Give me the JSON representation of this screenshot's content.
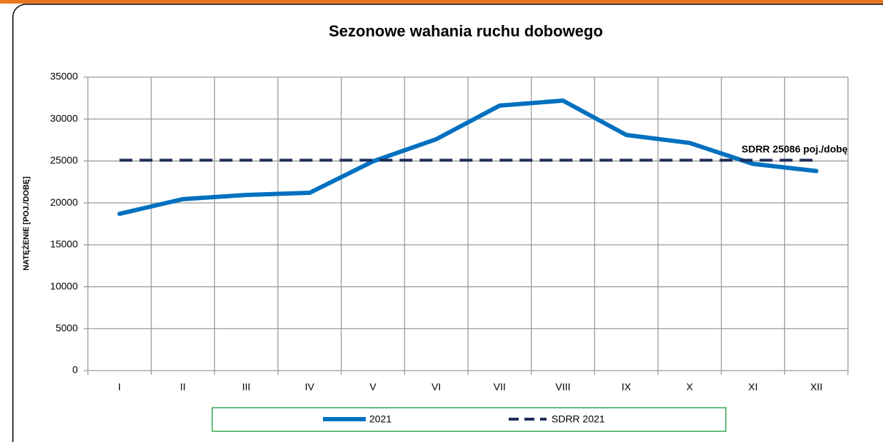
{
  "chart_data": {
    "type": "line",
    "title": "Sezonowe wahania ruchu dobowego",
    "y_label": "NATĘŻENIE [POJ./DOBĘ]",
    "annotation": "SDRR 25086  poj./dobę",
    "categories": [
      "I",
      "II",
      "III",
      "IV",
      "V",
      "VI",
      "VII",
      "VIII",
      "IX",
      "X",
      "XI",
      "XII"
    ],
    "series": [
      {
        "name": "2021",
        "color": "#0070c0",
        "values": [
          18700,
          20450,
          20950,
          21200,
          24950,
          27600,
          31600,
          32200,
          28100,
          27150,
          24650,
          23800
        ]
      },
      {
        "name": "SDRR 2021",
        "color": "#1f2d5a",
        "dashed": true,
        "values": [
          25086,
          25086,
          25086,
          25086,
          25086,
          25086,
          25086,
          25086,
          25086,
          25086,
          25086,
          25086
        ]
      }
    ],
    "ylim": [
      0,
      35000
    ],
    "yticks": [
      0,
      5000,
      10000,
      15000,
      20000,
      25000,
      30000,
      35000
    ],
    "grid": true,
    "legend": "bottom"
  }
}
